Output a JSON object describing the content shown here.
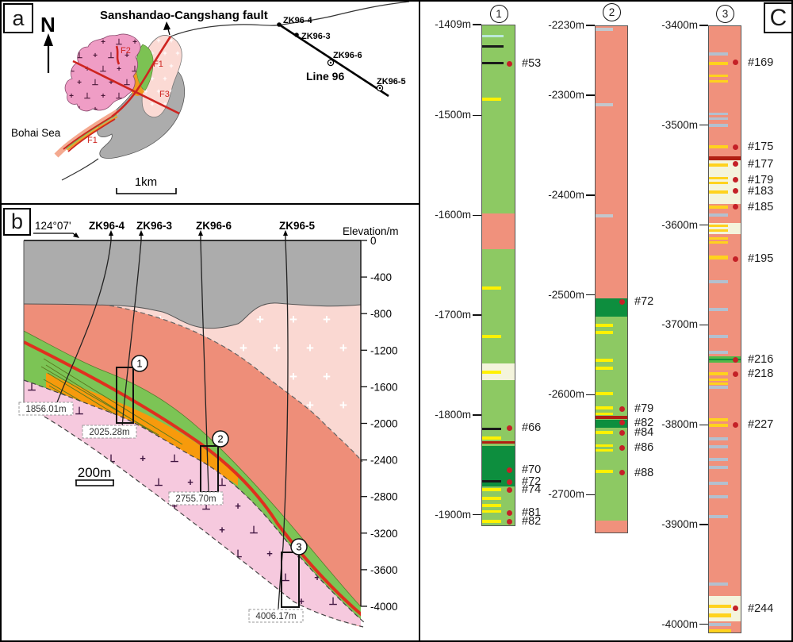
{
  "colors": {
    "salmon": "#F0917C",
    "green": "#8DC963",
    "darkgreen": "#0D8E3E",
    "yellow": "#FFF101",
    "gold": "#FFD21E",
    "cream": "#F4F4DC",
    "bluegray": "#B3C0CF",
    "cyan": "#BCE8D8",
    "gray_band": "#C3C7CD",
    "black_band": "#1A1A1A",
    "darkred": "#B01F12",
    "bandgreen": "#53B948",
    "sample_dot": "#C42127",
    "map_pink": "#EF9DC5",
    "map_lightpink": "#FBDAD4",
    "map_gray": "#ACACAC",
    "map_green": "#7CC253",
    "map_orange": "#EF9B1F",
    "fault_red": "#CE2420",
    "sec_gray": "#ACACAC",
    "sec_salmon": "#EE8E79",
    "sec_lightpink": "#FAD8D2",
    "sec_green": "#7CC455",
    "sec_orange": "#F79A0C",
    "sec_fault": "#E0301E",
    "sec_pink": "#F6C9DE",
    "streak": "#5A7A1E"
  },
  "panel_a": {
    "label": "a",
    "north": "N",
    "fault_name": "Sanshandao-Cangshang fault",
    "sea": "Bohai Sea",
    "scale": "1km",
    "line_label": "Line 96",
    "boreholes": [
      "ZK96-4",
      "ZK96-3",
      "ZK96-6",
      "ZK96-5"
    ],
    "faults": [
      "F2",
      "F1",
      "F3",
      "F1"
    ]
  },
  "panel_b": {
    "label": "b",
    "bearing": "124°07'",
    "elevation_label": "Elevation/m",
    "boreholes": [
      "ZK96-4",
      "ZK96-3",
      "ZK96-6",
      "ZK96-5"
    ],
    "elevation_ticks": [
      0,
      -400,
      -800,
      -1200,
      -1600,
      -2000,
      -2400,
      -2800,
      -3200,
      -3600,
      -4000
    ],
    "markers": [
      "1",
      "2",
      "3"
    ],
    "depth_marks": [
      "1856.01m",
      "2025.28m",
      "2755.70m",
      "4006.17m"
    ],
    "scale": "200m"
  },
  "panel_c": {
    "label": "C",
    "columns": [
      {
        "marker": "1",
        "ticks": [
          -1409,
          -1500,
          -1600,
          -1700,
          -1800,
          -1900
        ],
        "sections": [
          [
            -1409,
            -1597,
            "green"
          ],
          [
            -1597,
            -1633,
            "salmon"
          ],
          [
            -1633,
            -1748,
            "green"
          ],
          [
            -1748,
            -1764,
            "cream"
          ],
          [
            -1764,
            -1830,
            "green"
          ],
          [
            -1830,
            -1871,
            "darkgreen"
          ],
          [
            -1871,
            -1911,
            "green"
          ]
        ],
        "bands": [
          [
            -1420,
            3,
            "cyan",
            0.66
          ],
          [
            -1430,
            3,
            "black_band",
            0.66
          ],
          [
            -1447,
            3,
            "black_band",
            0.66
          ],
          [
            -1483,
            4,
            "yellow",
            0.58
          ],
          [
            -1672,
            4,
            "yellow",
            0.58
          ],
          [
            -1721,
            4,
            "yellow",
            0.58
          ],
          [
            -1756,
            4,
            "yellow",
            0.58
          ],
          [
            -1813,
            3,
            "black_band",
            0.58
          ],
          [
            -1822,
            4,
            "yellow",
            0.58
          ],
          [
            -1827,
            3,
            "darkred",
            1
          ],
          [
            -1866,
            3,
            "black_band",
            0.58
          ],
          [
            -1874,
            4,
            "yellow",
            0.58
          ],
          [
            -1883,
            4,
            "yellow",
            0.58
          ],
          [
            -1890,
            4,
            "yellow",
            0.58
          ],
          [
            -1896,
            3,
            "yellow",
            0.58
          ],
          [
            -1906,
            4,
            "yellow",
            0.58
          ]
        ],
        "samples": [
          [
            "#53",
            -1448
          ],
          [
            "#66",
            -1813
          ],
          [
            "#70",
            -1855
          ],
          [
            "#72",
            -1867
          ],
          [
            "#74",
            -1875
          ],
          [
            "#81",
            -1898
          ],
          [
            "#82",
            -1907
          ]
        ],
        "bottom_m": -1911
      },
      {
        "marker": "2",
        "ticks": [
          -2230,
          -2300,
          -2400,
          -2500,
          -2600,
          -2700
        ],
        "sections": [
          [
            -2230,
            -2503,
            "salmon"
          ],
          [
            -2503,
            -2521,
            "darkgreen"
          ],
          [
            -2521,
            -2624,
            "green"
          ],
          [
            -2624,
            -2632,
            "darkgreen"
          ],
          [
            -2632,
            -2725,
            "green"
          ],
          [
            -2725,
            -2739,
            "salmon"
          ]
        ],
        "bands": [
          [
            -2233,
            4,
            "gray_band",
            0.55
          ],
          [
            -2309,
            4,
            "gray_band",
            0.55
          ],
          [
            -2420,
            4,
            "gray_band",
            0.55
          ],
          [
            -2530,
            4,
            "yellow",
            0.55
          ],
          [
            -2537,
            4,
            "yellow",
            0.55
          ],
          [
            -2565,
            4,
            "yellow",
            0.55
          ],
          [
            -2573,
            4,
            "yellow",
            0.55
          ],
          [
            -2598,
            4,
            "yellow",
            0.55
          ],
          [
            -2612,
            4,
            "yellow",
            0.55
          ],
          [
            -2618,
            3,
            "yellow",
            0.55
          ],
          [
            -2622,
            4,
            "darkred",
            1
          ],
          [
            -2637,
            4,
            "yellow",
            0.55
          ],
          [
            -2650,
            3,
            "yellow",
            0.55
          ],
          [
            -2655,
            3,
            "yellow",
            0.55
          ],
          [
            -2676,
            4,
            "yellow",
            0.55
          ]
        ],
        "samples": [
          [
            "#72",
            -2507
          ],
          [
            "#79",
            -2614
          ],
          [
            "#82",
            -2628
          ],
          [
            "#84",
            -2638
          ],
          [
            "#86",
            -2653
          ],
          [
            "#88",
            -2678
          ]
        ],
        "bottom_m": -2739
      },
      {
        "marker": "3",
        "ticks": [
          -3400,
          -3500,
          -3600,
          -3700,
          -3800,
          -3900,
          -4000
        ],
        "sections": [
          [
            -3400,
            -3534,
            "salmon"
          ],
          [
            -3534,
            -3578,
            "cream"
          ],
          [
            -3578,
            -3597,
            "salmon"
          ],
          [
            -3597,
            -3608,
            "cream"
          ],
          [
            -3608,
            -3971,
            "salmon"
          ],
          [
            -3971,
            -3996,
            "cream"
          ],
          [
            -3996,
            -4009,
            "salmon"
          ]
        ],
        "bands": [
          [
            -3428,
            4,
            "bluegray",
            0.6
          ],
          [
            -3437,
            4,
            "gold",
            0.6
          ],
          [
            -3450,
            3,
            "gold",
            0.6
          ],
          [
            -3455,
            3,
            "gold",
            0.6
          ],
          [
            -3488,
            3,
            "bluegray",
            0.6
          ],
          [
            -3493,
            3,
            "bluegray",
            0.6
          ],
          [
            -3499,
            4,
            "bluegray",
            0.6
          ],
          [
            -3521,
            4,
            "gold",
            0.6
          ],
          [
            -3532,
            5,
            "darkred",
            1
          ],
          [
            -3539,
            4,
            "gold",
            0.6
          ],
          [
            -3552,
            3,
            "gold",
            0.6
          ],
          [
            -3557,
            3,
            "gold",
            0.6
          ],
          [
            -3566,
            4,
            "gold",
            0.6
          ],
          [
            -3581,
            4,
            "gold",
            0.6
          ],
          [
            -3589,
            4,
            "bluegray",
            0.6
          ],
          [
            -3600,
            3,
            "gold",
            0.6
          ],
          [
            -3605,
            3,
            "gold",
            0.6
          ],
          [
            -3613,
            3,
            "gold",
            0.6
          ],
          [
            -3617,
            3,
            "gold",
            0.6
          ],
          [
            -3632,
            5,
            "gold",
            0.6
          ],
          [
            -3656,
            4,
            "bluegray",
            0.6
          ],
          [
            -3684,
            4,
            "bluegray",
            0.6
          ],
          [
            -3711,
            4,
            "bluegray",
            0.6
          ],
          [
            -3727,
            4,
            "bluegray",
            0.6
          ],
          [
            -3734,
            8,
            "bandgreen",
            1
          ],
          [
            -3734,
            2.5,
            "darkgreen",
            1
          ],
          [
            -3748,
            4,
            "gold",
            0.6
          ],
          [
            -3754,
            3,
            "gold",
            0.6
          ],
          [
            -3758,
            3,
            "gold",
            0.6
          ],
          [
            -3762,
            4,
            "bluegray",
            0.6
          ],
          [
            -3794,
            4,
            "gold",
            0.6
          ],
          [
            -3800,
            4,
            "gold",
            0.6
          ],
          [
            -3813,
            4,
            "bluegray",
            0.6
          ],
          [
            -3821,
            4,
            "bluegray",
            0.6
          ],
          [
            -3834,
            4,
            "bluegray",
            0.6
          ],
          [
            -3842,
            4,
            "bluegray",
            0.6
          ],
          [
            -3858,
            4,
            "bluegray",
            0.6
          ],
          [
            -3871,
            4,
            "bluegray",
            0.6
          ],
          [
            -3891,
            4,
            "bluegray",
            0.6
          ],
          [
            -3959,
            4,
            "bluegray",
            0.6
          ],
          [
            -3981,
            4,
            "gold",
            0.7
          ],
          [
            -3990,
            5,
            "gold",
            0.7
          ],
          [
            -3999,
            4,
            "bluegray",
            0.7
          ],
          [
            -4006,
            4,
            "gold",
            0.7
          ]
        ],
        "samples": [
          [
            "#169",
            -3437
          ],
          [
            "#175",
            -3522
          ],
          [
            "#177",
            -3539
          ],
          [
            "#179",
            -3555
          ],
          [
            "#183",
            -3566
          ],
          [
            "#185",
            -3582
          ],
          [
            "#195",
            -3634
          ],
          [
            "#216",
            -3735
          ],
          [
            "#218",
            -3749
          ],
          [
            "#227",
            -3800
          ],
          [
            "#244",
            -3984
          ]
        ],
        "bottom_m": -4009
      }
    ]
  }
}
